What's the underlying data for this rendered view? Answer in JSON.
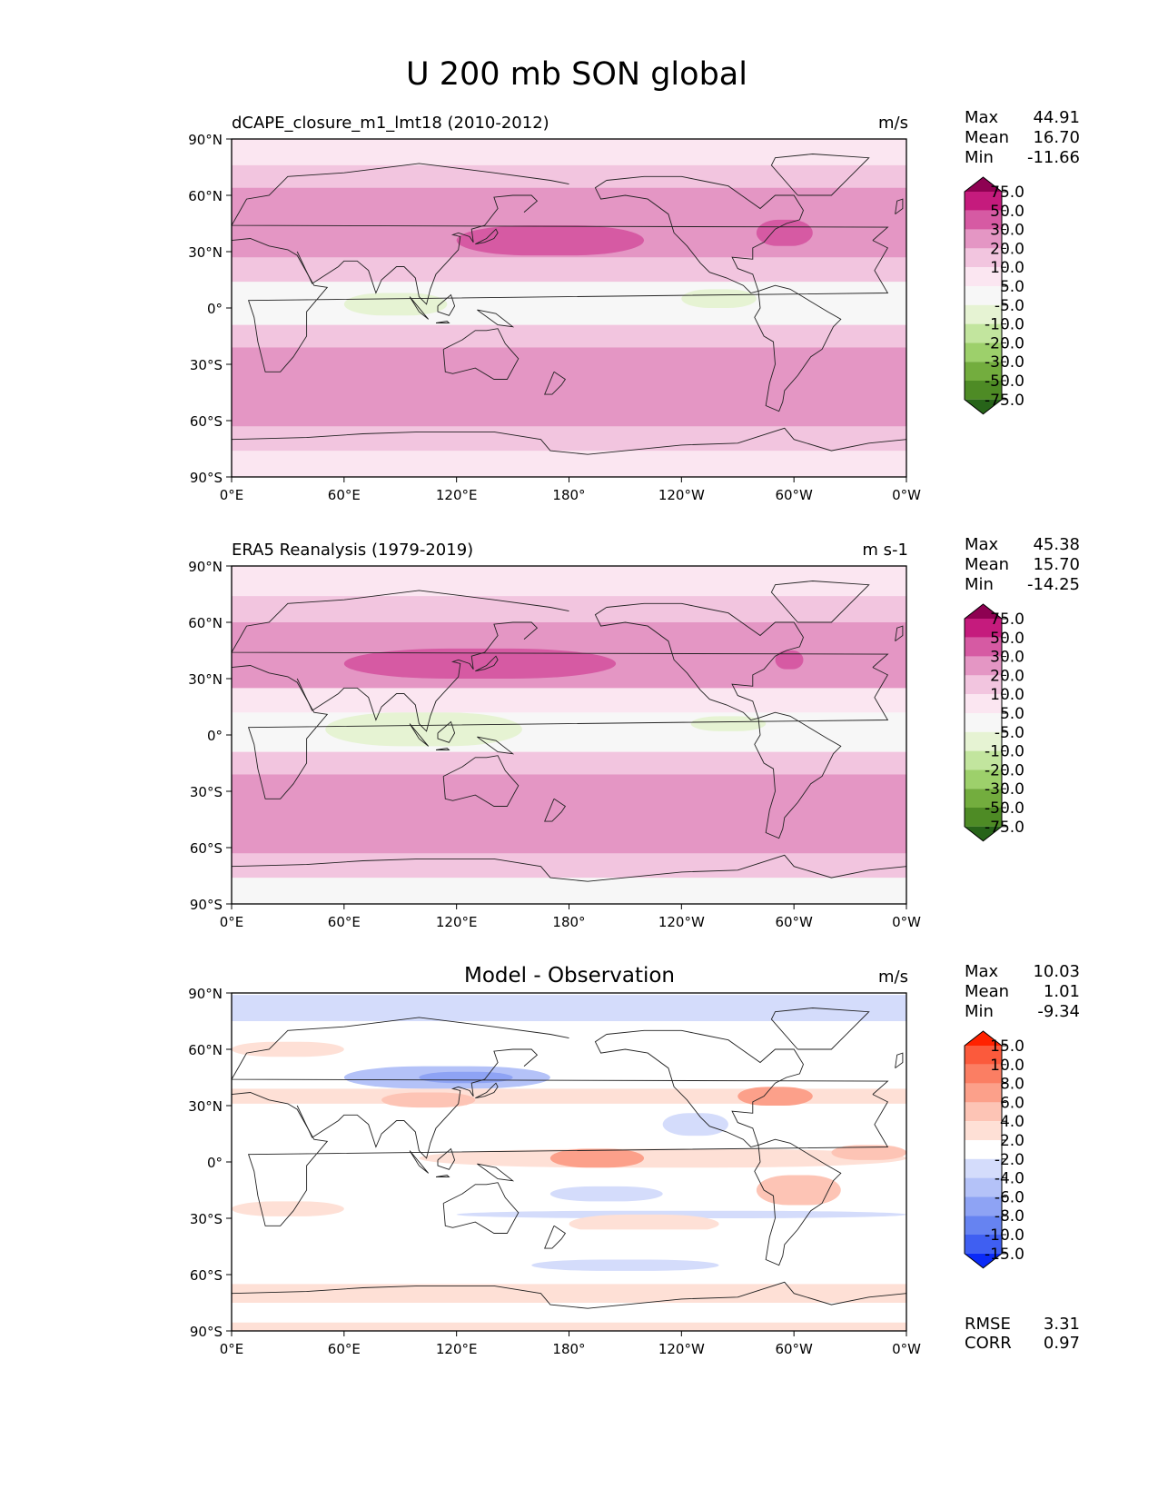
{
  "figure_title": "U 200 mb SON global",
  "chart_data": [
    {
      "type": "heatmap",
      "title_left": "dCAPE_closure_m1_lmt18 (2010-2012)",
      "title_center": "",
      "units": "m/s",
      "stats": [
        {
          "label": "Max",
          "value": "44.91"
        },
        {
          "label": "Mean",
          "value": "16.70"
        },
        {
          "label": "Min",
          "value": "-11.66"
        }
      ],
      "colorbar": {
        "levels": [
          "75.0",
          "50.0",
          "30.0",
          "20.0",
          "10.0",
          "5.0",
          "-5.0",
          "-10.0",
          "-20.0",
          "-30.0",
          "-50.0",
          "-75.0"
        ],
        "colors": [
          "#8e0152",
          "#c51b7d",
          "#d65aa3",
          "#e496c4",
          "#f2c5df",
          "#fbe6f1",
          "#f7f7f7",
          "#e6f3d3",
          "#c2e59e",
          "#9dd06b",
          "#73ad3e",
          "#4e8b25",
          "#276419"
        ]
      },
      "fields": [
        {
          "lat": 80,
          "lon0": 0,
          "lon1": 360,
          "h": 20,
          "v": 8
        },
        {
          "lat": 68,
          "lon0": 0,
          "lon1": 360,
          "h": 16,
          "v": 13
        },
        {
          "lat": 55,
          "lon0": 0,
          "lon1": 360,
          "h": 18,
          "v": 24
        },
        {
          "lat": 40,
          "lon0": 0,
          "lon1": 360,
          "h": 28,
          "v": 26
        },
        {
          "lat": 36,
          "lon0": 120,
          "lon1": 220,
          "h": 16,
          "v": 34
        },
        {
          "lat": 40,
          "lon0": 280,
          "lon1": 310,
          "h": 14,
          "v": 34
        },
        {
          "lat": 20,
          "lon0": 0,
          "lon1": 360,
          "h": 14,
          "v": 12
        },
        {
          "lat": 5,
          "lon0": 0,
          "lon1": 360,
          "h": 18,
          "v": 0
        },
        {
          "lat": 2,
          "lon0": 60,
          "lon1": 115,
          "h": 12,
          "v": -9
        },
        {
          "lat": 5,
          "lon0": 240,
          "lon1": 280,
          "h": 10,
          "v": -6
        },
        {
          "lat": -15,
          "lon0": 0,
          "lon1": 360,
          "h": 12,
          "v": 15
        },
        {
          "lat": -35,
          "lon0": 0,
          "lon1": 360,
          "h": 28,
          "v": 27
        },
        {
          "lat": -55,
          "lon0": 0,
          "lon1": 360,
          "h": 20,
          "v": 24
        },
        {
          "lat": -70,
          "lon0": 0,
          "lon1": 360,
          "h": 14,
          "v": 12
        },
        {
          "lat": -83,
          "lon0": 0,
          "lon1": 360,
          "h": 14,
          "v": 6
        }
      ],
      "rmse": null,
      "corr": null
    },
    {
      "type": "heatmap",
      "title_left": "ERA5 Reanalysis (1979-2019)",
      "title_center": "",
      "units": "m s-1",
      "stats": [
        {
          "label": "Max",
          "value": "45.38"
        },
        {
          "label": "Mean",
          "value": "15.70"
        },
        {
          "label": "Min",
          "value": "-14.25"
        }
      ],
      "colorbar": {
        "levels": [
          "75.0",
          "50.0",
          "30.0",
          "20.0",
          "10.0",
          "5.0",
          "-5.0",
          "-10.0",
          "-20.0",
          "-30.0",
          "-50.0",
          "-75.0"
        ],
        "colors": [
          "#8e0152",
          "#c51b7d",
          "#d65aa3",
          "#e496c4",
          "#f2c5df",
          "#fbe6f1",
          "#f7f7f7",
          "#e6f3d3",
          "#c2e59e",
          "#9dd06b",
          "#73ad3e",
          "#4e8b25",
          "#276419"
        ]
      },
      "fields": [
        {
          "lat": 80,
          "lon0": 0,
          "lon1": 360,
          "h": 20,
          "v": 7
        },
        {
          "lat": 65,
          "lon0": 0,
          "lon1": 360,
          "h": 18,
          "v": 13
        },
        {
          "lat": 50,
          "lon0": 0,
          "lon1": 360,
          "h": 20,
          "v": 22
        },
        {
          "lat": 35,
          "lon0": 0,
          "lon1": 360,
          "h": 22,
          "v": 22
        },
        {
          "lat": 38,
          "lon0": 60,
          "lon1": 205,
          "h": 16,
          "v": 34
        },
        {
          "lat": 40,
          "lon0": 290,
          "lon1": 305,
          "h": 10,
          "v": 36
        },
        {
          "lat": 18,
          "lon0": 0,
          "lon1": 360,
          "h": 14,
          "v": 9
        },
        {
          "lat": 3,
          "lon0": 0,
          "lon1": 360,
          "h": 18,
          "v": 0
        },
        {
          "lat": 3,
          "lon0": 50,
          "lon1": 155,
          "h": 18,
          "v": -9
        },
        {
          "lat": 6,
          "lon0": 245,
          "lon1": 285,
          "h": 8,
          "v": -6
        },
        {
          "lat": -15,
          "lon0": 0,
          "lon1": 360,
          "h": 12,
          "v": 14
        },
        {
          "lat": -35,
          "lon0": 0,
          "lon1": 360,
          "h": 28,
          "v": 27
        },
        {
          "lat": -55,
          "lon0": 0,
          "lon1": 360,
          "h": 20,
          "v": 22
        },
        {
          "lat": -70,
          "lon0": 0,
          "lon1": 360,
          "h": 14,
          "v": 11
        },
        {
          "lat": -83,
          "lon0": 0,
          "lon1": 360,
          "h": 14,
          "v": 2
        }
      ],
      "rmse": null,
      "corr": null
    },
    {
      "type": "heatmap",
      "title_left": "",
      "title_center": "Model - Observation",
      "units": "m/s",
      "stats": [
        {
          "label": "Max",
          "value": "10.03"
        },
        {
          "label": "Mean",
          "value": "1.01"
        },
        {
          "label": "Min",
          "value": "-9.34"
        }
      ],
      "colorbar": {
        "levels": [
          "15.0",
          "10.0",
          "8.0",
          "6.0",
          "4.0",
          "2.0",
          "-2.0",
          "-4.0",
          "-6.0",
          "-8.0",
          "-10.0",
          "-15.0"
        ],
        "colors": [
          "#ff2200",
          "#fb5a3c",
          "#fb7e63",
          "#fca08a",
          "#fdc4b5",
          "#fee0d6",
          "#ffffff",
          "#d4dcfb",
          "#b4c2f8",
          "#8ea3f4",
          "#6683f1",
          "#3f5ff2",
          "#0a2af7"
        ]
      },
      "fields": [
        {
          "lat": 82,
          "lon0": 0,
          "lon1": 360,
          "h": 14,
          "v": -3
        },
        {
          "lat": 60,
          "lon0": 0,
          "lon1": 60,
          "h": 8,
          "v": 2.5
        },
        {
          "lat": 45,
          "lon0": 60,
          "lon1": 170,
          "h": 12,
          "v": -5
        },
        {
          "lat": 45,
          "lon0": 100,
          "lon1": 150,
          "h": 6,
          "v": -7
        },
        {
          "lat": 35,
          "lon0": 0,
          "lon1": 360,
          "h": 8,
          "v": 2.5
        },
        {
          "lat": 33,
          "lon0": 80,
          "lon1": 130,
          "h": 8,
          "v": 5
        },
        {
          "lat": 35,
          "lon0": 270,
          "lon1": 310,
          "h": 10,
          "v": 6
        },
        {
          "lat": 20,
          "lon0": 230,
          "lon1": 265,
          "h": 12,
          "v": -4
        },
        {
          "lat": 5,
          "lon0": 0,
          "lon1": 360,
          "h": 10,
          "v": 1.2
        },
        {
          "lat": 2,
          "lon0": 100,
          "lon1": 360,
          "h": 10,
          "v": 3
        },
        {
          "lat": 2,
          "lon0": 170,
          "lon1": 220,
          "h": 10,
          "v": 6.5
        },
        {
          "lat": 5,
          "lon0": 320,
          "lon1": 360,
          "h": 8,
          "v": 5
        },
        {
          "lat": -15,
          "lon0": 280,
          "lon1": 325,
          "h": 16,
          "v": 4
        },
        {
          "lat": -17,
          "lon0": 170,
          "lon1": 230,
          "h": 8,
          "v": -4
        },
        {
          "lat": -25,
          "lon0": 0,
          "lon1": 60,
          "h": 8,
          "v": 2.5
        },
        {
          "lat": -28,
          "lon0": 120,
          "lon1": 360,
          "h": 4,
          "v": -2.5
        },
        {
          "lat": -33,
          "lon0": 180,
          "lon1": 260,
          "h": 10,
          "v": 3
        },
        {
          "lat": -40,
          "lon0": 0,
          "lon1": 360,
          "h": 8,
          "v": 1.5
        },
        {
          "lat": -55,
          "lon0": 160,
          "lon1": 260,
          "h": 6,
          "v": -2.5
        },
        {
          "lat": -70,
          "lon0": 0,
          "lon1": 360,
          "h": 10,
          "v": 2.5
        },
        {
          "lat": -88,
          "lon0": 0,
          "lon1": 360,
          "h": 5,
          "v": 2.5
        }
      ],
      "rmse": "3.31",
      "corr": "0.97"
    }
  ],
  "axes": {
    "lat_ticks": [
      "90°N",
      "60°N",
      "30°N",
      "0°",
      "30°S",
      "60°S",
      "90°S"
    ],
    "lon_ticks": [
      "0°E",
      "60°E",
      "120°E",
      "180°",
      "120°W",
      "60°W",
      "0°W"
    ]
  },
  "stat_labels": {
    "rmse": "RMSE",
    "corr": "CORR"
  }
}
